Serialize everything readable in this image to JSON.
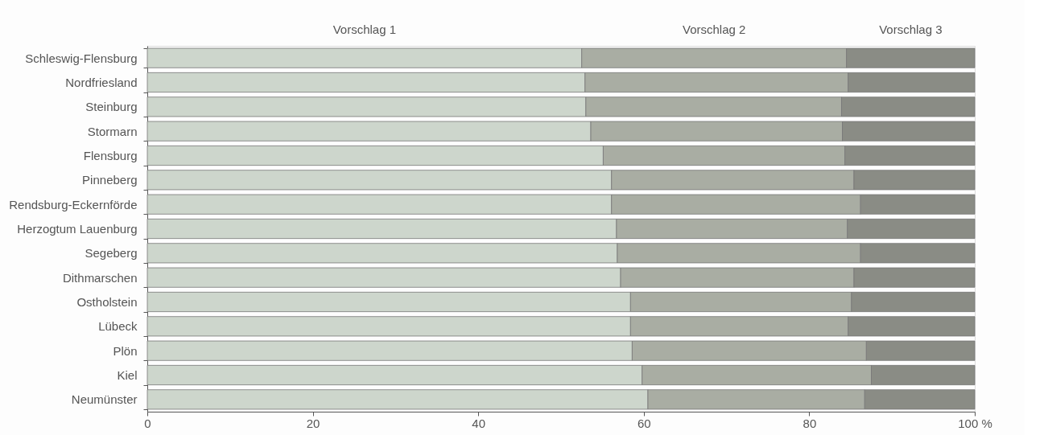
{
  "chart_data": {
    "type": "bar",
    "orientation": "horizontal",
    "stacked": true,
    "legend": "top",
    "categories": [
      "Schleswig-Flensburg",
      "Nordfriesland",
      "Steinburg",
      "Stormarn",
      "Flensburg",
      "Pinneberg",
      "Rendsburg-Eckernförde",
      "Herzogtum Lauenburg",
      "Segeberg",
      "Dithmarschen",
      "Ostholstein",
      "Lübeck",
      "Plön",
      "Kiel",
      "Neumünster"
    ],
    "series": [
      {
        "name": "Vorschlag 1",
        "color": "#cdd6cc",
        "values": [
          52.5,
          52.9,
          53.0,
          53.6,
          55.1,
          56.1,
          56.1,
          56.7,
          56.8,
          57.2,
          58.4,
          58.4,
          58.6,
          59.8,
          60.5
        ]
      },
      {
        "name": "Vorschlag 2",
        "color": "#a9ada3",
        "values": [
          32.0,
          31.8,
          30.9,
          30.4,
          29.2,
          29.3,
          30.1,
          27.9,
          29.4,
          28.2,
          26.7,
          26.3,
          28.3,
          27.7,
          26.2
        ]
      },
      {
        "name": "Vorschlag 3",
        "color": "#8a8c85",
        "values": [
          15.5,
          15.3,
          16.1,
          16.0,
          15.7,
          14.6,
          13.8,
          15.4,
          13.8,
          14.6,
          14.9,
          15.3,
          13.1,
          12.5,
          13.3
        ]
      }
    ],
    "xlim": [
      0,
      100
    ],
    "xticks": [
      0,
      20,
      40,
      60,
      80,
      {
        "value": 100,
        "label": "100 %"
      }
    ],
    "grid": false
  }
}
